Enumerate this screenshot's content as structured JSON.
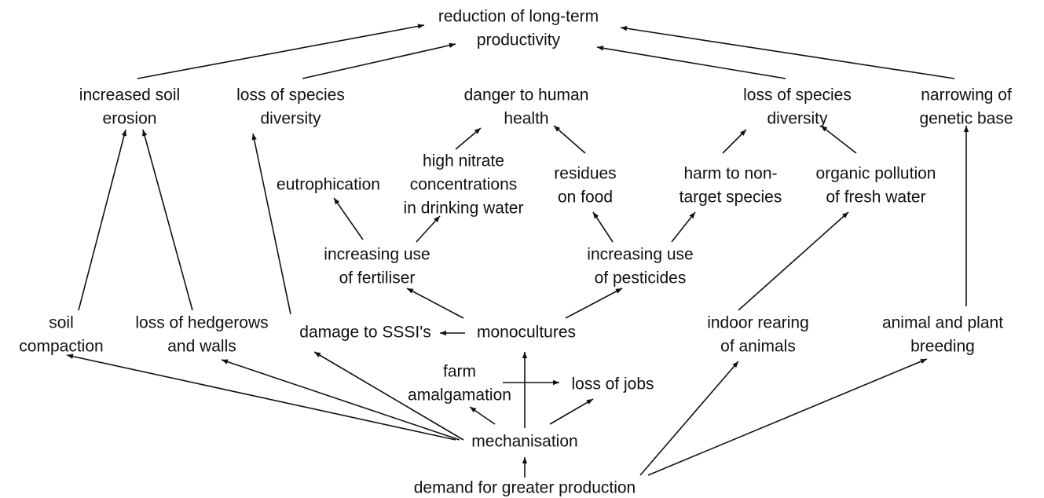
{
  "nodes": [
    {
      "lines": [
        "reduction of long-term",
        "productivity"
      ]
    },
    {
      "lines": [
        "increased soil",
        "erosion"
      ]
    },
    {
      "lines": [
        "loss of species",
        "diversity"
      ]
    },
    {
      "lines": [
        "danger to human",
        "health"
      ]
    },
    {
      "lines": [
        "loss of species",
        "diversity"
      ]
    },
    {
      "lines": [
        "narrowing of",
        "genetic base"
      ]
    },
    {
      "lines": [
        "eutrophication"
      ]
    },
    {
      "lines": [
        "high nitrate",
        "concentrations",
        "in drinking water"
      ]
    },
    {
      "lines": [
        "residues",
        "on food"
      ]
    },
    {
      "lines": [
        "harm to non-",
        "target species"
      ]
    },
    {
      "lines": [
        "organic pollution",
        "of fresh water"
      ]
    },
    {
      "lines": [
        "increasing use",
        "of fertiliser"
      ]
    },
    {
      "lines": [
        "increasing use",
        "of pesticides"
      ]
    },
    {
      "lines": [
        "soil",
        "compaction"
      ]
    },
    {
      "lines": [
        "loss of hedgerows",
        "and walls"
      ]
    },
    {
      "lines": [
        "damage to SSSI's"
      ]
    },
    {
      "lines": [
        "monocultures"
      ]
    },
    {
      "lines": [
        "indoor rearing",
        "of animals"
      ]
    },
    {
      "lines": [
        "animal and plant",
        "breeding"
      ]
    },
    {
      "lines": [
        "farm",
        "amalgamation"
      ]
    },
    {
      "lines": [
        "loss of jobs"
      ]
    },
    {
      "lines": [
        "mechanisation"
      ]
    },
    {
      "lines": [
        "demand for greater production"
      ]
    }
  ]
}
